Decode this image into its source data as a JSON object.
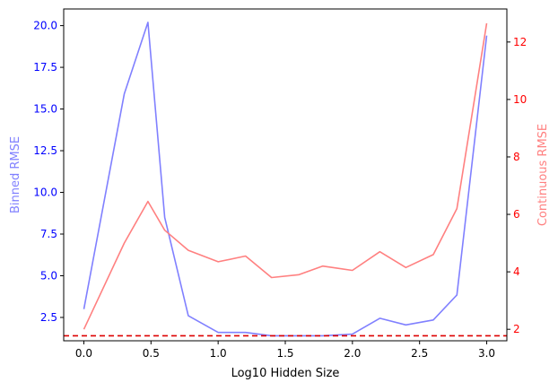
{
  "chart_data": {
    "type": "line",
    "title": "",
    "xlabel": "Log10 Hidden Size",
    "xlim": [
      -0.15,
      3.15
    ],
    "x_ticks": [
      0.0,
      0.5,
      1.0,
      1.5,
      2.0,
      2.5,
      3.0
    ],
    "x_tick_labels": [
      "0.0",
      "0.5",
      "1.0",
      "1.5",
      "2.0",
      "2.5",
      "3.0"
    ],
    "x": [
      0.0,
      0.301,
      0.477,
      0.602,
      0.778,
      1.0,
      1.204,
      1.398,
      1.602,
      1.778,
      2.0,
      2.204,
      2.398,
      2.602,
      2.778,
      3.0
    ],
    "left_axis": {
      "label": "Binned RMSE",
      "label_color": "#8080ff",
      "tick_color": "#0000ff",
      "ylim": [
        1.1,
        21.0
      ],
      "ticks": [
        2.5,
        5.0,
        7.5,
        10.0,
        12.5,
        15.0,
        17.5,
        20.0
      ],
      "tick_labels": [
        "2.5",
        "5.0",
        "7.5",
        "10.0",
        "12.5",
        "15.0",
        "17.5",
        "20.0"
      ]
    },
    "right_axis": {
      "label": "Continuous RMSE",
      "label_color": "#ff8080",
      "tick_color": "#ff0000",
      "ylim": [
        1.6,
        13.15
      ],
      "ticks": [
        2,
        4,
        6,
        8,
        10,
        12
      ],
      "tick_labels": [
        "2",
        "4",
        "6",
        "8",
        "10",
        "12"
      ]
    },
    "series": [
      {
        "axis": "left",
        "color": "#8080ff",
        "values": [
          3.0,
          15.9,
          20.2,
          8.5,
          2.6,
          1.6,
          1.6,
          1.4,
          1.4,
          1.4,
          1.5,
          2.45,
          2.05,
          2.35,
          3.85,
          19.4
        ]
      },
      {
        "axis": "right",
        "color": "#ff8080",
        "values": [
          2.0,
          5.0,
          6.45,
          5.45,
          4.75,
          4.35,
          4.55,
          3.8,
          3.9,
          4.2,
          4.05,
          4.7,
          4.15,
          4.6,
          6.2,
          12.65
        ]
      }
    ],
    "reference_line": {
      "axis": "left",
      "value": 1.4,
      "color": "#dd0000",
      "style": "dashed"
    }
  }
}
